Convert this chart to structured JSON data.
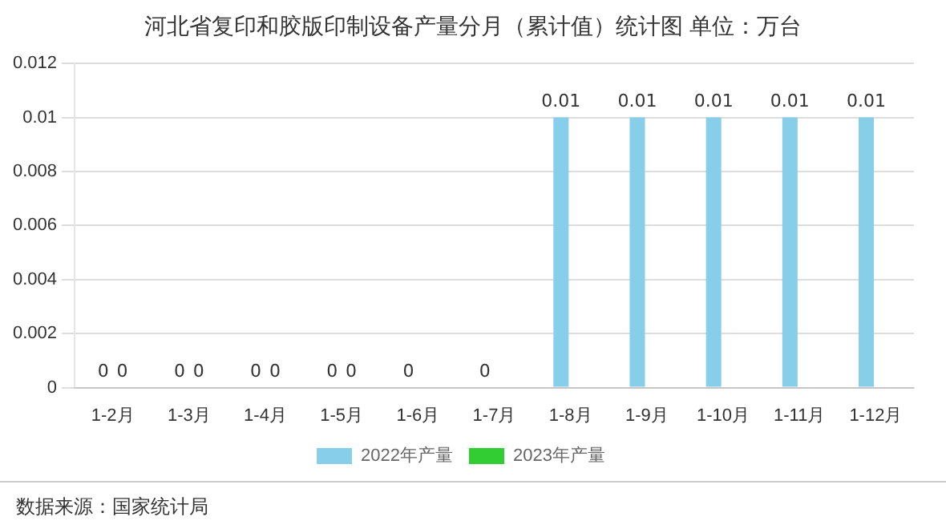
{
  "chart_data": {
    "type": "bar",
    "title": "河北省复印和胶版印制设备产量分月（累计值）统计图 单位：万台",
    "categories": [
      "1-2月",
      "1-3月",
      "1-4月",
      "1-5月",
      "1-6月",
      "1-7月",
      "1-8月",
      "1-9月",
      "1-10月",
      "1-11月",
      "1-12月"
    ],
    "series": [
      {
        "name": "2022年产量",
        "color": "#87ceeb",
        "values": [
          0,
          0,
          0,
          0,
          0,
          0,
          0.01,
          0.01,
          0.01,
          0.01,
          0.01
        ]
      },
      {
        "name": "2023年产量",
        "color": "#32cd32",
        "values": [
          0,
          0,
          0,
          0,
          null,
          null,
          null,
          null,
          null,
          null,
          null
        ]
      }
    ],
    "ylim": [
      0,
      0.012
    ],
    "yticks": [
      0,
      0.002,
      0.004,
      0.006,
      0.008,
      0.01,
      0.012
    ],
    "grid": "y",
    "legend": "bottom",
    "data_labels": true,
    "annotations": [
      "数据来源：国家统计局"
    ]
  }
}
